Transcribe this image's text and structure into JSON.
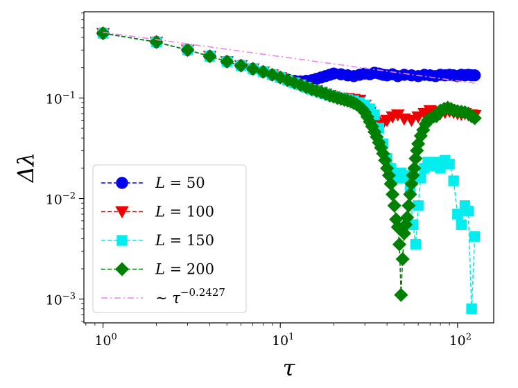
{
  "chart_data": {
    "type": "line",
    "xscale": "log",
    "yscale": "log",
    "xlabel": "τ",
    "ylabel": "Δλ",
    "xlim": [
      0.78,
      160
    ],
    "ylim": [
      0.00058,
      0.72
    ],
    "x_ticks": [
      {
        "base": "10",
        "exp": "0"
      },
      {
        "base": "10",
        "exp": "1"
      },
      {
        "base": "10",
        "exp": "2"
      }
    ],
    "y_ticks": [
      {
        "base": "10",
        "exp": "−3"
      },
      {
        "base": "10",
        "exp": "−2"
      },
      {
        "base": "10",
        "exp": "−1"
      }
    ],
    "legend_position": "lower-left",
    "series": [
      {
        "name": "L = 50",
        "label_var": "L",
        "label_rest": " = 50",
        "color": "#0000ee",
        "marker": "circle",
        "linestyle": "dashed",
        "x": [
          1,
          2,
          3,
          4,
          5,
          6,
          7,
          8,
          9,
          10,
          11,
          12,
          13,
          14,
          15,
          16,
          17,
          18,
          19,
          20,
          22,
          24,
          26,
          28,
          30,
          32,
          34,
          36,
          38,
          40,
          43,
          46,
          50,
          55,
          60,
          65,
          70,
          75,
          80,
          85,
          90,
          95,
          100,
          105,
          110,
          115,
          120,
          125
        ],
        "y": [
          0.44,
          0.36,
          0.3,
          0.26,
          0.23,
          0.21,
          0.195,
          0.182,
          0.17,
          0.16,
          0.152,
          0.148,
          0.146,
          0.148,
          0.15,
          0.155,
          0.16,
          0.165,
          0.17,
          0.175,
          0.172,
          0.168,
          0.165,
          0.17,
          0.175,
          0.172,
          0.178,
          0.175,
          0.17,
          0.168,
          0.172,
          0.165,
          0.17,
          0.168,
          0.165,
          0.17,
          0.168,
          0.165,
          0.17,
          0.168,
          0.17,
          0.168,
          0.165,
          0.17,
          0.168,
          0.17,
          0.168,
          0.168
        ]
      },
      {
        "name": "L = 100",
        "label_var": "L",
        "label_rest": " = 100",
        "color": "#ee0000",
        "marker": "triangle-down",
        "linestyle": "dashed",
        "x": [
          1,
          2,
          3,
          4,
          5,
          6,
          7,
          8,
          9,
          10,
          11,
          12,
          13,
          14,
          15,
          16,
          17,
          18,
          19,
          20,
          22,
          24,
          26,
          28,
          30,
          32,
          34,
          36,
          38,
          40,
          43,
          46,
          50,
          55,
          60,
          65,
          70,
          75,
          80,
          85,
          90,
          95,
          100,
          105,
          110,
          115,
          120,
          125
        ],
        "y": [
          0.44,
          0.36,
          0.3,
          0.26,
          0.23,
          0.21,
          0.195,
          0.182,
          0.17,
          0.16,
          0.15,
          0.142,
          0.135,
          0.128,
          0.122,
          0.118,
          0.114,
          0.11,
          0.106,
          0.103,
          0.1,
          0.099,
          0.097,
          0.095,
          0.085,
          0.072,
          0.058,
          0.054,
          0.056,
          0.06,
          0.065,
          0.068,
          0.062,
          0.06,
          0.065,
          0.07,
          0.075,
          0.073,
          0.07,
          0.072,
          0.074,
          0.072,
          0.07,
          0.069,
          0.07,
          0.068,
          0.068,
          0.067
        ]
      },
      {
        "name": "L = 150",
        "label_var": "L",
        "label_rest": " = 150",
        "color": "#00eeee",
        "marker": "square",
        "linestyle": "dashed",
        "x": [
          1,
          2,
          3,
          4,
          5,
          6,
          7,
          8,
          9,
          10,
          11,
          12,
          13,
          14,
          15,
          16,
          17,
          18,
          19,
          20,
          22,
          24,
          26,
          28,
          30,
          32,
          34,
          36,
          38,
          40,
          42,
          44,
          46,
          48,
          50,
          52,
          54,
          56,
          58,
          60,
          62,
          65,
          68,
          72,
          76,
          80,
          85,
          90,
          95,
          100,
          105,
          110,
          115,
          120,
          125
        ],
        "y": [
          0.44,
          0.36,
          0.3,
          0.26,
          0.23,
          0.21,
          0.195,
          0.182,
          0.17,
          0.16,
          0.15,
          0.142,
          0.135,
          0.128,
          0.122,
          0.118,
          0.114,
          0.11,
          0.106,
          0.103,
          0.1,
          0.097,
          0.094,
          0.09,
          0.085,
          0.078,
          0.068,
          0.05,
          0.035,
          0.025,
          0.02,
          0.017,
          0.016,
          0.018,
          0.016,
          0.017,
          0.012,
          0.0055,
          0.0035,
          0.0085,
          0.016,
          0.02,
          0.023,
          0.021,
          0.023,
          0.02,
          0.024,
          0.022,
          0.015,
          0.007,
          0.0055,
          0.0085,
          0.0075,
          0.0008,
          0.0042
        ]
      },
      {
        "name": "L = 200",
        "label_var": "L",
        "label_rest": " = 200",
        "color": "#008000",
        "marker": "diamond",
        "linestyle": "dashed",
        "x": [
          1,
          2,
          3,
          4,
          5,
          6,
          7,
          8,
          9,
          10,
          11,
          12,
          13,
          14,
          15,
          16,
          17,
          18,
          19,
          20,
          21,
          22,
          23,
          24,
          25,
          26,
          27,
          28,
          29,
          30,
          31,
          32,
          33,
          34,
          35,
          36,
          37,
          38,
          39,
          40,
          41,
          42,
          43,
          44,
          45,
          46,
          47,
          48,
          49,
          50,
          51,
          52,
          53,
          54,
          55,
          56,
          57,
          58,
          59,
          60,
          62,
          64,
          66,
          68,
          70,
          73,
          76,
          80,
          84,
          88,
          92,
          96,
          100,
          105,
          110,
          115,
          120,
          125
        ],
        "y": [
          0.44,
          0.36,
          0.3,
          0.26,
          0.23,
          0.21,
          0.195,
          0.182,
          0.17,
          0.16,
          0.15,
          0.142,
          0.135,
          0.128,
          0.122,
          0.118,
          0.114,
          0.11,
          0.106,
          0.103,
          0.1,
          0.098,
          0.096,
          0.094,
          0.092,
          0.089,
          0.086,
          0.082,
          0.078,
          0.072,
          0.065,
          0.058,
          0.052,
          0.046,
          0.041,
          0.036,
          0.032,
          0.028,
          0.024,
          0.02,
          0.017,
          0.014,
          0.011,
          0.0085,
          0.0062,
          0.0052,
          0.0035,
          0.0011,
          0.0025,
          0.0045,
          0.0055,
          0.0065,
          0.0085,
          0.011,
          0.014,
          0.017,
          0.02,
          0.025,
          0.03,
          0.035,
          0.042,
          0.048,
          0.055,
          0.06,
          0.062,
          0.065,
          0.066,
          0.075,
          0.078,
          0.08,
          0.078,
          0.075,
          0.074,
          0.073,
          0.072,
          0.07,
          0.066,
          0.063
        ]
      },
      {
        "name": "~ τ^−0.2427",
        "label_var": "∼ τ",
        "label_sup": "−0.2427",
        "color": "#ee82ee",
        "marker": "none",
        "linestyle": "dashdot",
        "exponent": -0.2427,
        "prefactor": 0.45,
        "x": [
          1,
          130
        ],
        "y": [
          0.45,
          0.139
        ]
      }
    ]
  }
}
